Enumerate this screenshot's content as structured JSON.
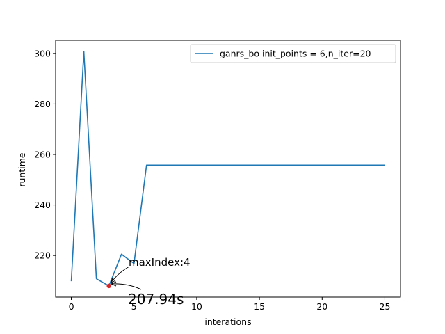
{
  "chart_data": {
    "type": "line",
    "title": "",
    "xlabel": "interations",
    "ylabel": "runtime",
    "xlim": [
      -1.25,
      26.25
    ],
    "ylim": [
      203.5,
      305.2
    ],
    "xticks": [
      0,
      5,
      10,
      15,
      20,
      25
    ],
    "yticks": [
      220,
      240,
      260,
      280,
      300
    ],
    "grid": false,
    "legend_position": "top-right",
    "series": [
      {
        "name": "ganrs_bo  init_points = 6,n_iter=20",
        "color": "#1f77b4",
        "x": [
          0,
          1,
          2,
          3,
          4,
          5,
          6,
          7,
          8,
          9,
          10,
          11,
          12,
          13,
          14,
          15,
          16,
          17,
          18,
          19,
          20,
          21,
          22,
          23,
          24,
          25
        ],
        "y": [
          209.8,
          300.8,
          210.8,
          207.94,
          220.5,
          216.8,
          255.8,
          255.8,
          255.8,
          255.8,
          255.8,
          255.8,
          255.8,
          255.8,
          255.8,
          255.8,
          255.8,
          255.8,
          255.8,
          255.8,
          255.8,
          255.8,
          255.8,
          255.8,
          255.8,
          255.8
        ]
      }
    ],
    "highlight": {
      "x": 3,
      "y": 207.94,
      "color": "#d62728"
    },
    "annotations": [
      {
        "text": "maxIndex:4"
      },
      {
        "text": "207.94s"
      }
    ]
  }
}
